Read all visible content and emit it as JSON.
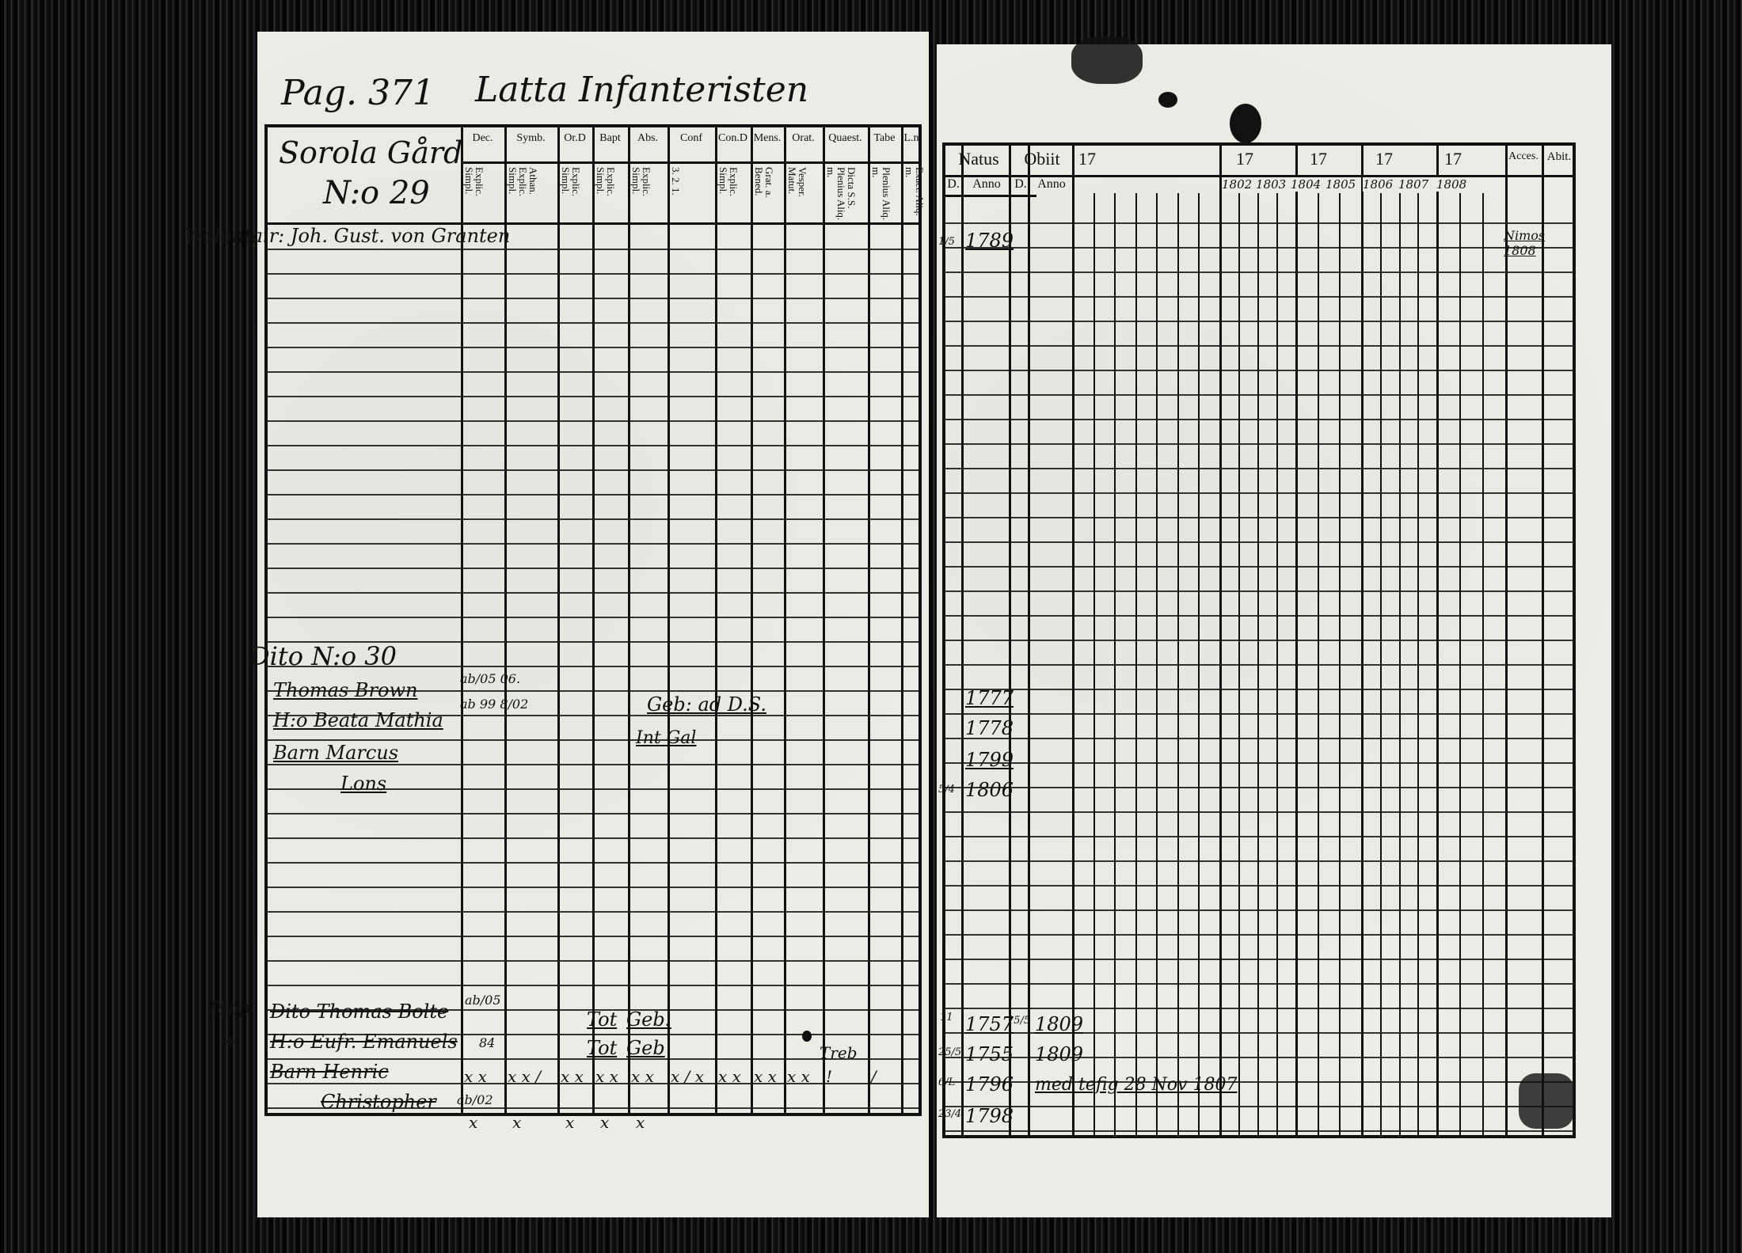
{
  "left_page": {
    "page_label": "Pag. 371",
    "title": "Latta Infanteristen",
    "farm_header": {
      "line1": "Sorola Gård",
      "line2": "N:o 29"
    },
    "column_headers": [
      "Dec.",
      "Symb.",
      "Or.D",
      "Bapt",
      "Abs.",
      "Conf",
      "Con.D",
      "Mens.",
      "Orat.",
      "Quaest.",
      "Tabe",
      "L.n"
    ],
    "column_subheaders": [
      "Explic. Simpl.",
      "Athan. Explic. Simpl.",
      "Explic. Simpl.",
      "Explic. Simpl.",
      "Explic. Simpl.",
      "3. 2. 1.",
      "Explic. Simpl.",
      "Grat. a. Bened.",
      "Vesper. Matut.",
      "Dicta S.S. Plenius Aliq. m.",
      "Plenius Aliq. m.",
      "Exact. Aliq. m."
    ],
    "entries": {
      "volontair": "Wolontair: Joh. Gust. von Granten",
      "dito30": "Dito N:o 30",
      "thomas_brown": "Thomas Brown",
      "thomas_note": "ab/05 06.",
      "beata": "H:o Beata Mathia",
      "beata_note": "ab 99 8/02",
      "barn_marcus": "Barn Marcus",
      "lons": "Lons",
      "geb_ad": "Geb: ad D.S.",
      "int_gal": "Int Gal",
      "margin_tapp": "Tapp",
      "margin_cross": "+",
      "dito_bolte": "Dito Thomas Bolte",
      "bolte_note": "ab/05",
      "eufr": "H:o Eufr. Emanuels",
      "eufr_note": "84",
      "barn_henric": "Barn Henric",
      "christopher": "Christopher",
      "christopher_note": "ab/02",
      "tot1": "Tot",
      "geb1": "Geb:",
      "tot2": "Tot",
      "geb2": "Geb",
      "marks_row1": [
        "x x",
        "x x /",
        "x x",
        "x x",
        "x x",
        "x / x",
        "x x",
        "x x",
        "x x",
        "!",
        "/"
      ],
      "marks_row2": [
        "x",
        "x",
        "x",
        "x",
        "x"
      ],
      "treb": "Treb"
    }
  },
  "right_page": {
    "headers": {
      "natus": "Natus",
      "obiit": "Obiit",
      "d": "D.",
      "anno": "Anno",
      "year_prefix": "17",
      "acces": "Acces.",
      "abit": "Abit."
    },
    "year_labels": [
      "1802",
      "1803",
      "1804",
      "1805",
      "1806",
      "1807",
      "1808"
    ],
    "entries": {
      "volontair_day": "1/5",
      "volontair_year": "1789",
      "acces_note": "Nimos 1808",
      "brown_year": "1777",
      "beata_year": "1778",
      "marcus_year": "1799",
      "lons_day": "5/4",
      "lons_year": "1806",
      "bolte_day": "11",
      "bolte_year": "1757",
      "bolte_death_day": "15/5",
      "bolte_death_year": "1809",
      "eufr_day": "25/5",
      "eufr_year": "1755",
      "eufr_death_year": "1809",
      "henric_day": "6/L",
      "henric_year": "1796",
      "henric_note": "med tefig 28 Nov 1807",
      "christopher_day": "23/4",
      "christopher_year": "1798"
    }
  }
}
